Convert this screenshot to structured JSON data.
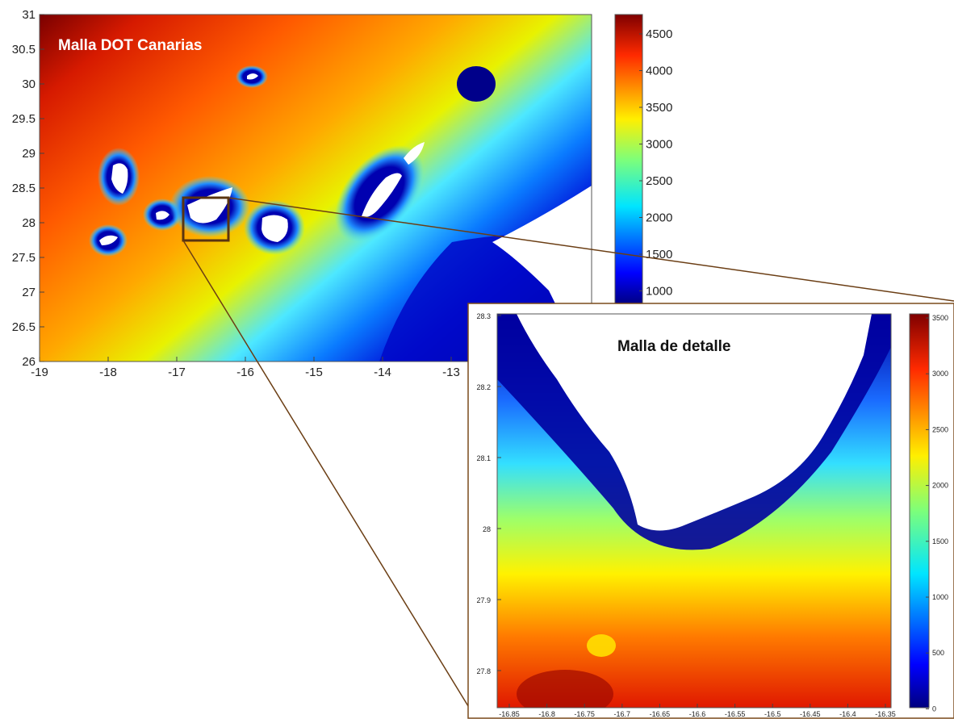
{
  "main_map": {
    "title": "Malla DOT Canarias",
    "x_ticks": [
      "-19",
      "-18",
      "-17",
      "-16",
      "-15",
      "-14",
      "-13"
    ],
    "y_ticks": [
      "26",
      "26.5",
      "27",
      "27.5",
      "28",
      "28.5",
      "29",
      "29.5",
      "30",
      "30.5",
      "31"
    ],
    "colorbar_ticks": [
      "4500",
      "4000",
      "3500",
      "3000",
      "2500",
      "2000",
      "1500",
      "1000"
    ]
  },
  "detail_map": {
    "title": "Malla de detalle",
    "x_ticks": [
      "-16.85",
      "-16.8",
      "-16.75",
      "-16.7",
      "-16.65",
      "-16.6",
      "-16.55",
      "-16.5",
      "-16.45",
      "-16.4",
      "-16.35"
    ],
    "y_ticks": [
      "27.8",
      "27.9",
      "28",
      "28.1",
      "28.2",
      "28.3"
    ],
    "colorbar_ticks": [
      "3500",
      "3000",
      "2500",
      "2000",
      "1500",
      "1000",
      "500",
      "0"
    ]
  },
  "colors": {
    "zoom_line": "#6b3e14",
    "land": "#ffffff",
    "deep": "#7a0000",
    "shallow": "#00007a"
  }
}
